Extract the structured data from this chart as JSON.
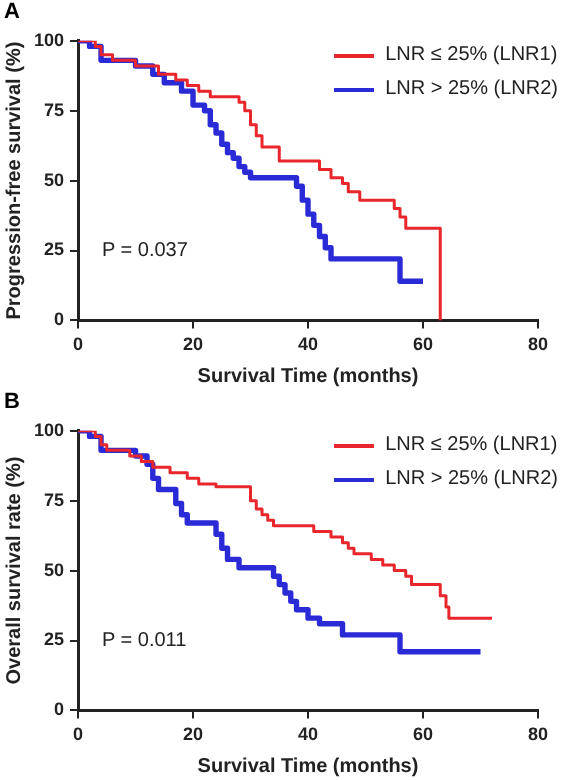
{
  "chart_data": [
    {
      "type": "step",
      "title": "A",
      "xlabel": "Survival Time (months)",
      "ylabel": "Progression-free survival (%)",
      "xlim": [
        0,
        80
      ],
      "xticks": [
        0,
        20,
        40,
        60,
        80
      ],
      "ylim": [
        0,
        100
      ],
      "yticks": [
        0,
        25,
        50,
        75,
        100
      ],
      "grid": false,
      "legend": "top right",
      "annotations": [
        "P = 0.037"
      ],
      "series": [
        {
          "name": "LNR ≤ 25% (LNR1)",
          "color": "#e8262b",
          "x": [
            0,
            3,
            4,
            6,
            10,
            14,
            17,
            19,
            21,
            23,
            27,
            28,
            29,
            30,
            31,
            32,
            34,
            35,
            41,
            42,
            44,
            46,
            47,
            49,
            54,
            55,
            56,
            57,
            63,
            63
          ],
          "values": [
            100,
            98,
            95,
            93,
            91,
            88,
            86,
            84,
            82,
            80,
            80,
            78,
            75,
            70,
            66,
            62,
            62,
            57,
            57,
            54,
            51,
            49,
            46,
            43,
            43,
            40,
            37,
            33,
            33,
            0
          ]
        },
        {
          "name": "LNR > 25% (LNR2)",
          "color": "#2a2ad6",
          "x": [
            0,
            2,
            4,
            10,
            13,
            15,
            18,
            20,
            22,
            23,
            24,
            25,
            26,
            27,
            28,
            29,
            30,
            37,
            38,
            39,
            40,
            41,
            42,
            43,
            44,
            55,
            56,
            60
          ],
          "values": [
            100,
            98,
            93,
            91,
            88,
            85,
            82,
            77,
            75,
            70,
            67,
            63,
            60,
            58,
            55,
            53,
            51,
            51,
            48,
            43,
            38,
            34,
            30,
            26,
            22,
            22,
            14,
            14
          ]
        }
      ]
    },
    {
      "type": "step",
      "title": "B",
      "xlabel": "Survival Time (months)",
      "ylabel": "Overall survival rate (%)",
      "xlim": [
        0,
        80
      ],
      "xticks": [
        0,
        20,
        40,
        60,
        80
      ],
      "ylim": [
        0,
        100
      ],
      "yticks": [
        0,
        25,
        50,
        75,
        100
      ],
      "grid": false,
      "legend": "top right",
      "annotations": [
        "P = 0.011"
      ],
      "series": [
        {
          "name": "LNR ≤ 25% (LNR1)",
          "color": "#e8262b",
          "x": [
            0,
            3,
            4,
            5,
            9,
            11,
            13,
            16,
            19,
            21,
            24,
            29,
            30,
            31,
            32,
            33,
            34,
            40,
            41,
            44,
            46,
            47,
            48,
            51,
            53,
            55,
            57,
            58,
            62,
            63,
            64,
            64.5,
            72
          ],
          "values": [
            100,
            98,
            95,
            93,
            91,
            89,
            87,
            85,
            83,
            81,
            80,
            80,
            75,
            72,
            70,
            68,
            66,
            66,
            64,
            62,
            60,
            58,
            56,
            54,
            52,
            50,
            48,
            45,
            45,
            41,
            37,
            33,
            33
          ]
        },
        {
          "name": "LNR > 25% (LNR2)",
          "color": "#2a2ad6",
          "x": [
            0,
            2,
            4,
            9,
            10,
            12,
            13,
            14,
            17,
            18,
            19,
            23,
            24,
            25,
            26,
            28,
            33,
            34,
            35,
            36,
            37,
            38,
            40,
            42,
            46,
            56,
            70
          ],
          "values": [
            100,
            98,
            93,
            93,
            91,
            88,
            83,
            79,
            74,
            70,
            67,
            67,
            63,
            58,
            54,
            51,
            51,
            48,
            45,
            42,
            39,
            36,
            33,
            31,
            27,
            21,
            21
          ]
        }
      ]
    }
  ]
}
